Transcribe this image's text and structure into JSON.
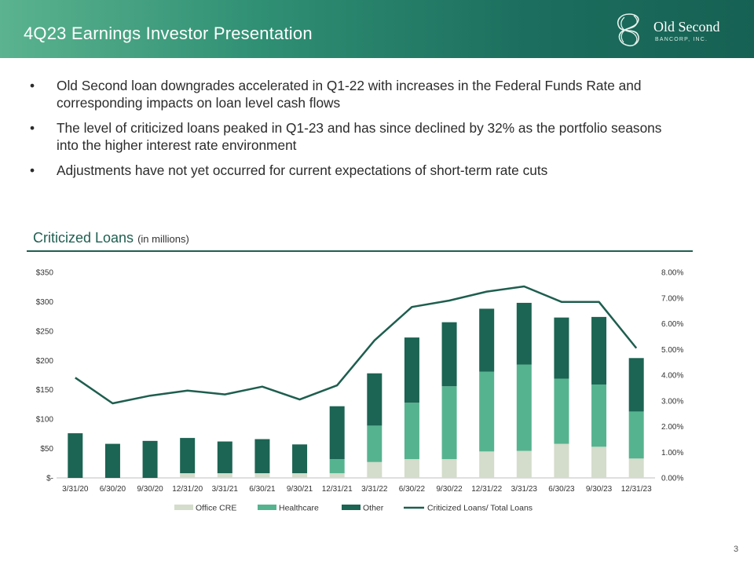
{
  "header": {
    "title": "4Q23 Earnings Investor Presentation"
  },
  "logo": {
    "name": "Old Second",
    "subtitle": "BANCORP, INC."
  },
  "bullets": [
    "Old Second loan downgrades accelerated in Q1-22 with increases in the Federal Funds Rate and corresponding impacts on loan level cash flows",
    "The level of criticized loans peaked in Q1-23 and has since declined by 32% as the portfolio seasons into the higher interest rate environment",
    "Adjustments have not yet occurred for current expectations of short-term rate cuts"
  ],
  "bullet_symbol": "•",
  "section": {
    "title": "Criticized Loans",
    "unit": "(in millions)"
  },
  "page_number": "3",
  "colors": {
    "office_cre": "#d4dccb",
    "healthcare": "#56b38f",
    "other": "#1c6453",
    "ratio_line": "#1e5e4e"
  },
  "chart_data": {
    "type": "bar",
    "stacked": true,
    "categories": [
      "3/31/20",
      "6/30/20",
      "9/30/20",
      "12/31/20",
      "3/31/21",
      "6/30/21",
      "9/30/21",
      "12/31/21",
      "3/31/22",
      "6/30/22",
      "9/30/22",
      "12/31/22",
      "3/31/23",
      "6/30/23",
      "9/30/23",
      "12/31/23"
    ],
    "series": [
      {
        "name": "Office CRE",
        "axis": "left",
        "values": [
          0,
          0,
          0,
          8,
          8,
          8,
          8,
          8,
          27,
          32,
          32,
          45,
          46,
          58,
          53,
          33
        ]
      },
      {
        "name": "Healthcare",
        "axis": "left",
        "values": [
          0,
          0,
          0,
          0,
          0,
          0,
          0,
          24,
          62,
          96,
          124,
          136,
          147,
          111,
          106,
          80
        ]
      },
      {
        "name": "Other",
        "axis": "left",
        "values": [
          76,
          58,
          63,
          60,
          54,
          58,
          49,
          90,
          89,
          111,
          109,
          107,
          105,
          104,
          115,
          91
        ]
      }
    ],
    "line_series": {
      "name": "Criticized Loans/ Total Loans",
      "axis": "right",
      "values": [
        3.9,
        2.9,
        3.2,
        3.4,
        3.25,
        3.55,
        3.05,
        3.6,
        5.35,
        6.65,
        6.9,
        7.25,
        7.45,
        6.85,
        6.85,
        5.05
      ]
    },
    "left_axis": {
      "min": 0,
      "max": 350,
      "step": 50,
      "tick_labels": [
        "$-",
        "$50",
        "$100",
        "$150",
        "$200",
        "$250",
        "$300",
        "$350"
      ]
    },
    "right_axis": {
      "min": 0,
      "max": 8,
      "step": 1,
      "tick_labels": [
        "0.00%",
        "1.00%",
        "2.00%",
        "3.00%",
        "4.00%",
        "5.00%",
        "6.00%",
        "7.00%",
        "8.00%"
      ]
    },
    "legend": [
      "Office CRE",
      "Healthcare",
      "Other",
      "Criticized Loans/ Total Loans"
    ],
    "legend_position": "bottom",
    "grid": false
  }
}
